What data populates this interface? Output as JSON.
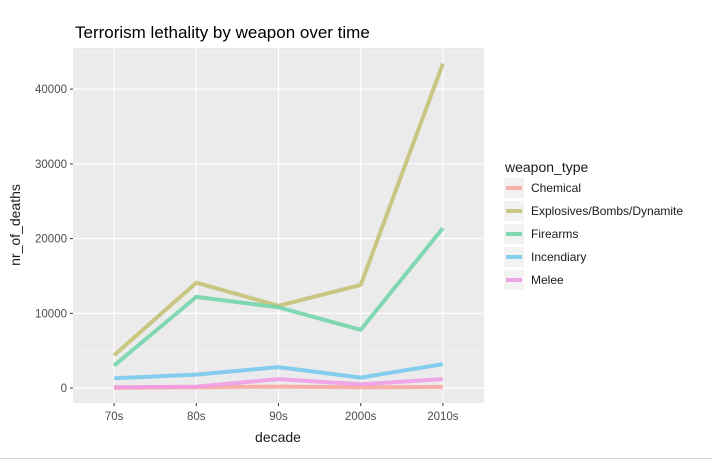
{
  "chart_data": {
    "type": "line",
    "title": "Terrorism lethality by weapon over time",
    "xlabel": "decade",
    "ylabel": "nr_of_deaths",
    "categories": [
      "70s",
      "80s",
      "90s",
      "2000s",
      "2010s"
    ],
    "yticks": [
      0,
      10000,
      20000,
      30000,
      40000
    ],
    "ytick_labels": [
      "0",
      "10000",
      "20000",
      "30000",
      "40000"
    ],
    "ylim": [
      -2000,
      45500
    ],
    "grid": true,
    "legend_title": "weapon_type",
    "legend_position": "right",
    "series": [
      {
        "name": "Chemical",
        "color": "#f8a49a",
        "values": [
          50,
          100,
          200,
          100,
          150
        ]
      },
      {
        "name": "Explosives/Bombs/Dynamite",
        "color": "#c3c071",
        "values": [
          4400,
          14100,
          11000,
          13800,
          43400
        ]
      },
      {
        "name": "Firearms",
        "color": "#6fd3a8",
        "values": [
          3000,
          12200,
          10800,
          7800,
          21400
        ]
      },
      {
        "name": "Incendiary",
        "color": "#73c8ee",
        "values": [
          1300,
          1800,
          2800,
          1400,
          3200
        ]
      },
      {
        "name": "Melee",
        "color": "#ef9ae6",
        "values": [
          100,
          200,
          1200,
          500,
          1200
        ]
      }
    ]
  }
}
